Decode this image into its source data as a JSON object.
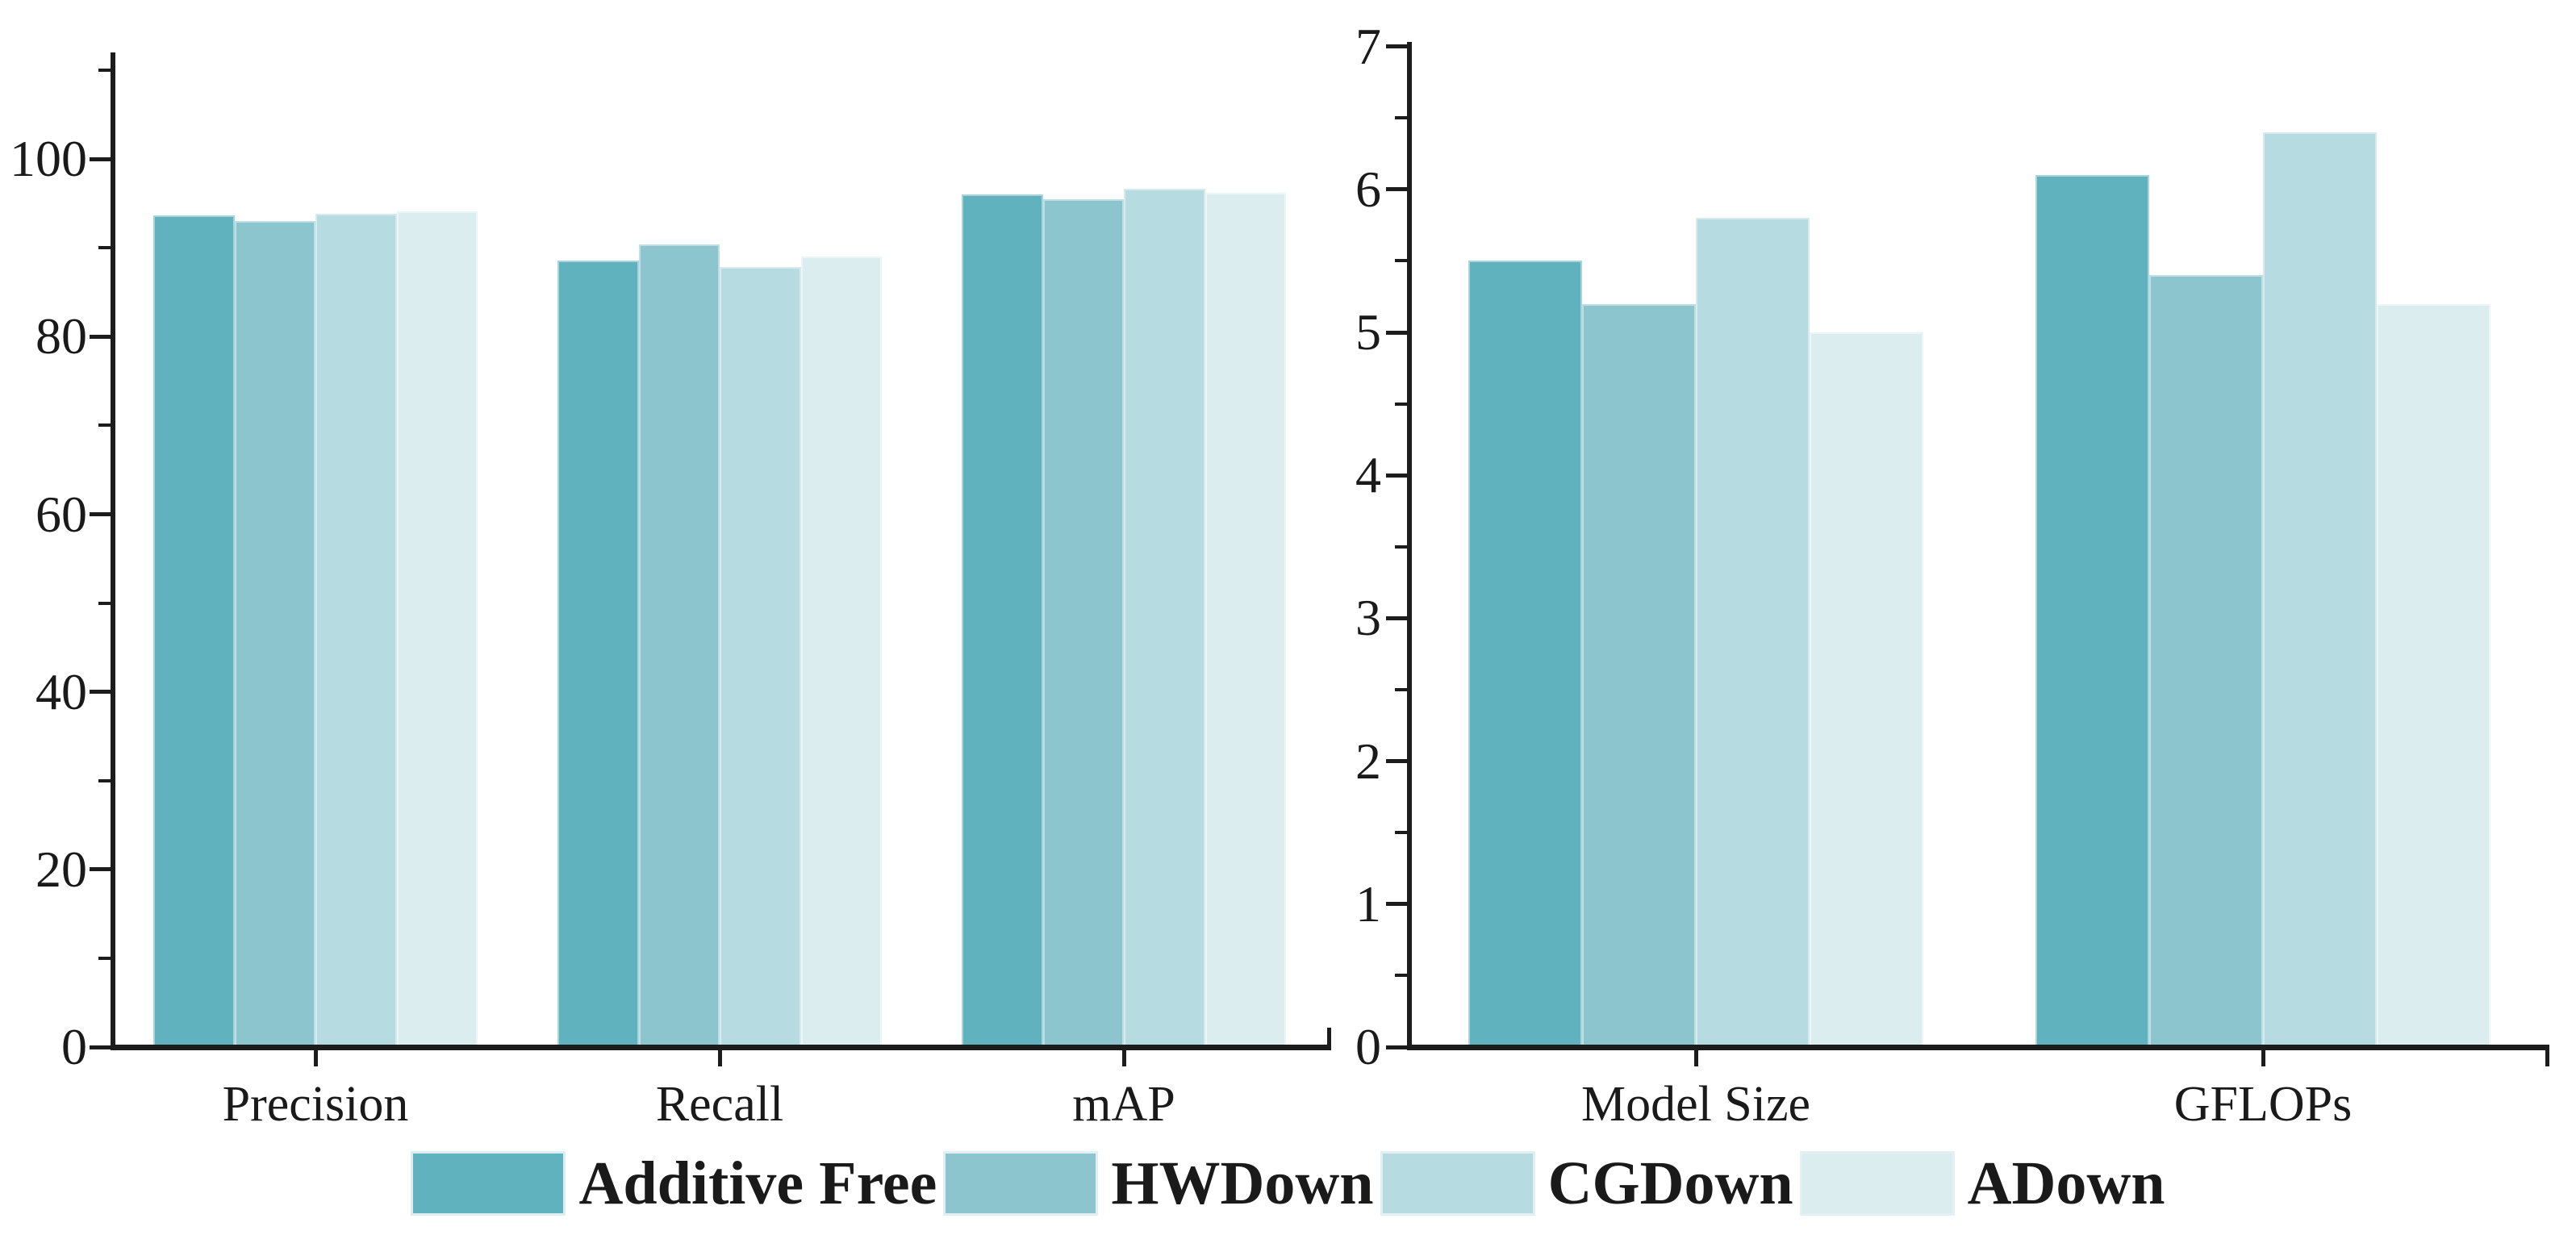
{
  "figure": {
    "background": "#ffffff",
    "axis_color": "#1c1c1c",
    "text_color": "#1a1a1a"
  },
  "legend": {
    "position": "bottom",
    "items": [
      {
        "label": "Additive Free",
        "color": "#5fb2be"
      },
      {
        "label": "HWDown",
        "color": "#8cc5ce"
      },
      {
        "label": "CGDown",
        "color": "#b6dbe0"
      },
      {
        "label": "ADown",
        "color": "#dcedf0"
      }
    ]
  },
  "chart_data": [
    {
      "type": "bar",
      "title": "",
      "xlabel": "",
      "ylabel": "",
      "categories": [
        "Precision",
        "Recall",
        "mAP"
      ],
      "series": [
        {
          "name": "Additive Free",
          "color": "#5fb2be",
          "values": [
            93.7,
            88.6,
            96.0
          ]
        },
        {
          "name": "HWDown",
          "color": "#8cc5ce",
          "values": [
            93.0,
            90.4,
            95.5
          ]
        },
        {
          "name": "CGDown",
          "color": "#b6dbe0",
          "values": [
            93.8,
            87.8,
            96.7
          ]
        },
        {
          "name": "ADown",
          "color": "#dcedf0",
          "values": [
            94.1,
            89.0,
            96.2
          ]
        }
      ],
      "ylim": [
        0,
        112
      ],
      "yticks_major": [
        0,
        20,
        40,
        60,
        80,
        100
      ],
      "yticks_minor": [
        10,
        30,
        50,
        70,
        90,
        110
      ],
      "grid": false,
      "legend_position": "bottom shared"
    },
    {
      "type": "bar",
      "title": "",
      "xlabel": "",
      "ylabel": "",
      "categories": [
        "Model Size",
        "GFLOPs"
      ],
      "series": [
        {
          "name": "Additive Free",
          "color": "#5fb2be",
          "values": [
            5.5,
            6.1
          ]
        },
        {
          "name": "HWDown",
          "color": "#8cc5ce",
          "values": [
            5.2,
            5.4
          ]
        },
        {
          "name": "CGDown",
          "color": "#b6dbe0",
          "values": [
            5.8,
            6.4
          ]
        },
        {
          "name": "ADown",
          "color": "#dcedf0",
          "values": [
            5.0,
            5.2
          ]
        }
      ],
      "ylim": [
        0,
        7
      ],
      "yticks_major": [
        0,
        1,
        2,
        3,
        4,
        5,
        6,
        7
      ],
      "yticks_minor": [
        0.5,
        1.5,
        2.5,
        3.5,
        4.5,
        5.5,
        6.5
      ],
      "grid": false,
      "legend_position": "bottom shared"
    }
  ]
}
